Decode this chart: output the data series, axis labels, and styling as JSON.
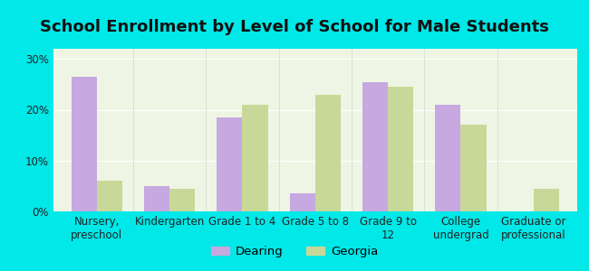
{
  "title": "School Enrollment by Level of School for Male Students",
  "categories": [
    "Nursery,\npreschool",
    "Kindergarten",
    "Grade 1 to 4",
    "Grade 5 to 8",
    "Grade 9 to\n12",
    "College\nundergrad",
    "Graduate or\nprofessional"
  ],
  "dearing": [
    26.5,
    5.0,
    18.5,
    3.5,
    25.5,
    21.0,
    0.0
  ],
  "georgia": [
    6.0,
    4.5,
    21.0,
    23.0,
    24.5,
    17.0,
    4.5
  ],
  "dearing_color": "#c8a8e0",
  "georgia_color": "#c8d898",
  "background_outer": "#00e8e8",
  "background_inner": "#eef5e4",
  "ylim": [
    0,
    32
  ],
  "yticks": [
    0,
    10,
    20,
    30
  ],
  "ytick_labels": [
    "0%",
    "10%",
    "20%",
    "30%"
  ],
  "legend_labels": [
    "Dearing",
    "Georgia"
  ],
  "title_fontsize": 13,
  "tick_fontsize": 8.5,
  "legend_fontsize": 9.5,
  "bar_width": 0.35
}
